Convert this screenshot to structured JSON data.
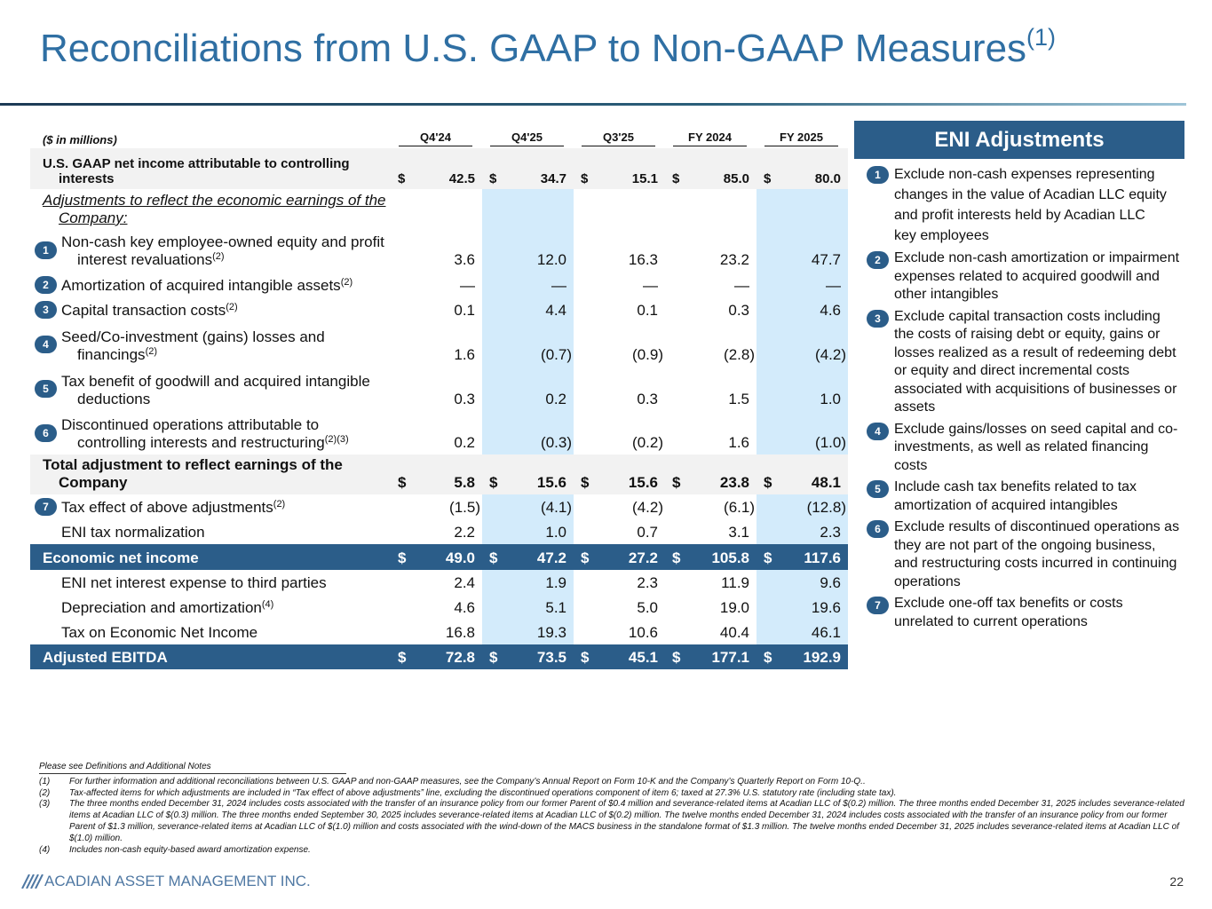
{
  "title": "Reconciliations from U.S. GAAP to Non-GAAP Measures",
  "title_sup": "(1)",
  "table": {
    "unit_label": "($ in millions)",
    "columns": [
      "Q4'24",
      "Q4'25",
      "Q3'25",
      "FY 2024",
      "FY 2025"
    ],
    "rows": [
      {
        "label": "U.S. GAAP net income attributable to controlling interests",
        "currency": "$",
        "values": [
          "42.5",
          "34.7",
          "15.1",
          "85.0",
          "80.0"
        ]
      },
      {
        "label": "Adjustments to reflect the economic earnings of the Company:"
      },
      {
        "badge": "1",
        "label": "Non-cash key employee-owned equity and profit interest revaluations",
        "sup": "(2)",
        "values": [
          "3.6",
          "12.0",
          "16.3",
          "23.2",
          "47.7"
        ]
      },
      {
        "badge": "2",
        "label": "Amortization of acquired intangible assets",
        "sup": "(2)",
        "values": [
          "—",
          "—",
          "—",
          "—",
          "—"
        ]
      },
      {
        "badge": "3",
        "label": "Capital transaction costs",
        "sup": "(2)",
        "values": [
          "0.1",
          "4.4",
          "0.1",
          "0.3",
          "4.6"
        ]
      },
      {
        "badge": "4",
        "label": "Seed/Co-investment (gains) losses and financings",
        "sup": "(2)",
        "values": [
          "1.6",
          "(0.7)",
          "(0.9)",
          "(2.8)",
          "(4.2)"
        ]
      },
      {
        "badge": "5",
        "label": "Tax benefit of goodwill and acquired intangible deductions",
        "values": [
          "0.3",
          "0.2",
          "0.3",
          "1.5",
          "1.0"
        ]
      },
      {
        "badge": "6",
        "label": "Discontinued operations attributable to controlling interests and restructuring",
        "sup": "(2)(3)",
        "values": [
          "0.2",
          "(0.3)",
          "(0.2)",
          "1.6",
          "(1.0)"
        ]
      },
      {
        "label": "Total adjustment to reflect earnings of the Company",
        "currency": "$",
        "values": [
          "5.8",
          "15.6",
          "15.6",
          "23.8",
          "48.1"
        ]
      },
      {
        "badge": "7",
        "label": "Tax effect of above adjustments",
        "sup": "(2)",
        "values": [
          "(1.5)",
          "(4.1)",
          "(4.2)",
          "(6.1)",
          "(12.8)"
        ]
      },
      {
        "label": "ENI tax normalization",
        "values": [
          "2.2",
          "1.0",
          "0.7",
          "3.1",
          "2.3"
        ]
      },
      {
        "label": "Economic net income",
        "currency": "$",
        "values": [
          "49.0",
          "47.2",
          "27.2",
          "105.8",
          "117.6"
        ]
      },
      {
        "label": "ENI net interest expense to third parties",
        "values": [
          "2.4",
          "1.9",
          "2.3",
          "11.9",
          "9.6"
        ]
      },
      {
        "label": "Depreciation and amortization",
        "sup": "(4)",
        "values": [
          "4.6",
          "5.1",
          "5.0",
          "19.0",
          "19.6"
        ]
      },
      {
        "label": "Tax on Economic Net Income",
        "values": [
          "16.8",
          "19.3",
          "10.6",
          "40.4",
          "46.1"
        ]
      },
      {
        "label": "Adjusted EBITDA",
        "currency": "$",
        "values": [
          "72.8",
          "73.5",
          "45.1",
          "177.1",
          "192.9"
        ]
      }
    ]
  },
  "side": {
    "title": "ENI Adjustments",
    "items": [
      {
        "number": "1",
        "text": "Exclude non-cash expenses representing changes in the value of Acadian LLC equity and profit interests held by Acadian LLC key employees"
      },
      {
        "number": "2",
        "text": "Exclude non-cash amortization or impairment expenses related to acquired goodwill and other intangibles"
      },
      {
        "number": "3",
        "text": "Exclude capital transaction costs including the costs of raising debt or equity, gains or losses realized as a result of redeeming debt or equity and direct incremental costs associated with acquisitions of businesses or assets"
      },
      {
        "number": "4",
        "text": "Exclude gains/losses on seed capital and co-investments, as well as related financing costs"
      },
      {
        "number": "5",
        "text": "Include cash tax benefits related to tax amortization of acquired intangibles"
      },
      {
        "number": "6",
        "text": "Exclude results of discontinued operations as they are not part of the ongoing business, and restructuring costs incurred in continuing operations"
      },
      {
        "number": "7",
        "text": "Exclude one-off tax benefits or costs unrelated to current operations"
      }
    ]
  },
  "footnotes": {
    "intro": "Please see Definitions and Additional Notes",
    "items": [
      {
        "mark": "(1)",
        "text": "For further information and additional reconciliations between U.S. GAAP and non-GAAP measures, see the Company’s Annual Report on Form 10-K and the Company’s Quarterly Report on Form 10-Q.."
      },
      {
        "mark": "(2)",
        "text": "Tax-affected items for which adjustments are included in “Tax effect of above adjustments” line, excluding the discontinued operations component of item 6; taxed at 27.3% U.S. statutory rate (including state tax)."
      },
      {
        "mark": "(3)",
        "text": "The three months ended December 31, 2024 includes costs associated with the transfer of an insurance policy from our former Parent of $0.4 million and severance-related items at Acadian LLC of $(0.2) million. The three months ended December 31, 2025 includes severance-related items at Acadian LLC of $(0.3) million. The three months ended September 30, 2025 includes severance-related items at Acadian LLC of $(0.2) million. The twelve months ended December 31, 2024 includes costs associated with the transfer of an insurance policy from our former Parent of $1.3 million, severance-related items at Acadian LLC of $(1.0) million and costs associated with the wind-down of the MACS business in the standalone format of $1.3 million. The twelve months ended December 31, 2025 includes severance-related items at Acadian LLC of $(1.0) million."
      },
      {
        "mark": "(4)",
        "text": "Includes non-cash equity-based award amortization expense."
      }
    ]
  },
  "footer": {
    "company": "ACADIAN ASSET MANAGEMENT INC.",
    "page": "22"
  }
}
